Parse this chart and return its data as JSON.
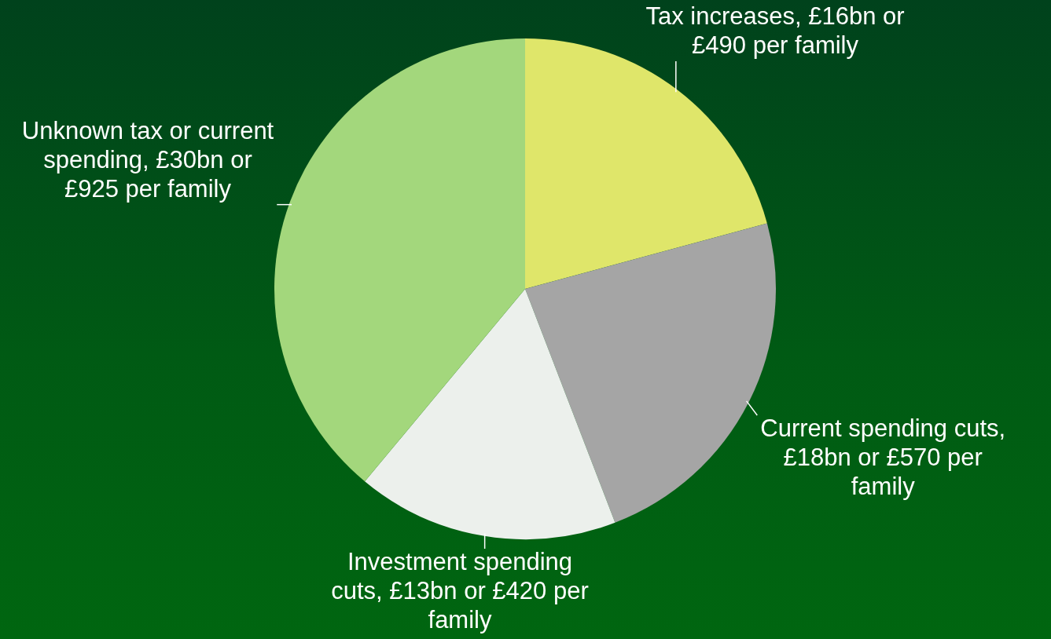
{
  "chart_data": {
    "type": "pie",
    "categories": [
      "Tax increases, £16bn or £490 per family",
      "Current spending cuts, £18bn or £570 per family",
      "Investment spending cuts, £13bn or £420 per family",
      "Unknown tax or current spending, £30bn or £925 per family"
    ],
    "values": [
      20.78,
      23.38,
      16.88,
      38.96
    ],
    "colors": [
      "#dfe66a",
      "#a5a5a5",
      "#ecf0ec",
      "#a3d77c"
    ],
    "legend": false
  }
}
